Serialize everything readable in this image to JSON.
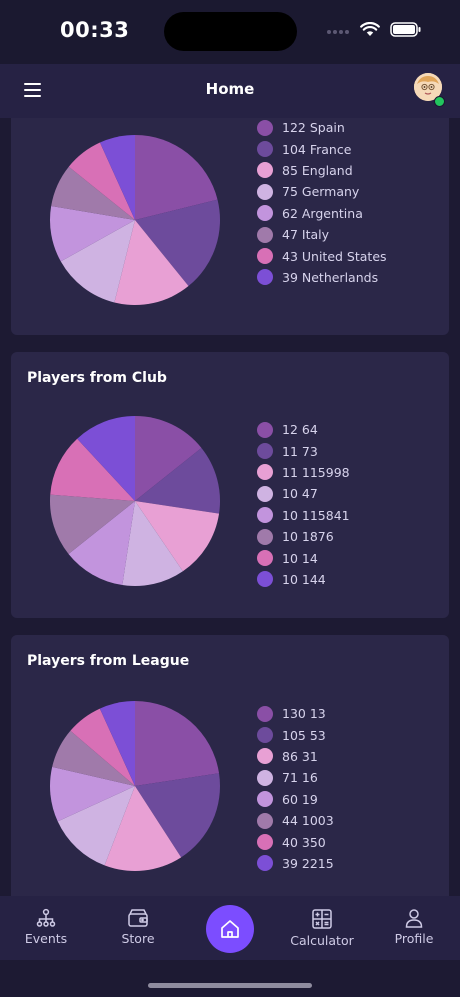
{
  "status_bar": {
    "time": "00:33"
  },
  "header": {
    "title": "Home",
    "menu_icon": "hamburger-menu-icon",
    "avatar": "user-avatar"
  },
  "palette": [
    "#8a4fa6",
    "#6d4b9c",
    "#e8a0d4",
    "#cfb3e2",
    "#c294dd",
    "#a07aaa",
    "#d870b6",
    "#7c4fd6"
  ],
  "cards": [
    {
      "title": "",
      "legend": [
        "122 Spain",
        "104 France",
        "85 England",
        "75 Germany",
        "62 Argentina",
        "47 Italy",
        "43 United States",
        "39 Netherlands"
      ],
      "chart_data": {
        "type": "pie",
        "categories": [
          "Spain",
          "France",
          "England",
          "Germany",
          "Argentina",
          "Italy",
          "United States",
          "Netherlands"
        ],
        "values": [
          122,
          104,
          85,
          75,
          62,
          47,
          43,
          39
        ]
      }
    },
    {
      "title": "Players from Club",
      "legend": [
        "12 64",
        "11 73",
        "11 115998",
        "10 47",
        "10 115841",
        "10 1876",
        "10 14",
        "10 144"
      ],
      "chart_data": {
        "type": "pie",
        "categories": [
          "64",
          "73",
          "115998",
          "47",
          "115841",
          "1876",
          "14",
          "144"
        ],
        "values": [
          12,
          11,
          11,
          10,
          10,
          10,
          10,
          10
        ]
      }
    },
    {
      "title": "Players from League",
      "legend": [
        "130 13",
        "105 53",
        "86 31",
        "71 16",
        "60 19",
        "44 1003",
        "40 350",
        "39 2215"
      ],
      "chart_data": {
        "type": "pie",
        "categories": [
          "13",
          "53",
          "31",
          "16",
          "19",
          "1003",
          "350",
          "2215"
        ],
        "values": [
          130,
          105,
          86,
          71,
          60,
          44,
          40,
          39
        ]
      }
    }
  ],
  "bottom_nav": {
    "items": [
      {
        "label": "Events",
        "icon": "org-chart-icon"
      },
      {
        "label": "Store",
        "icon": "store-wallet-icon"
      },
      {
        "label": "Calculator",
        "icon": "calculator-icon"
      },
      {
        "label": "Profile",
        "icon": "profile-icon"
      }
    ],
    "home_icon": "home-icon"
  }
}
